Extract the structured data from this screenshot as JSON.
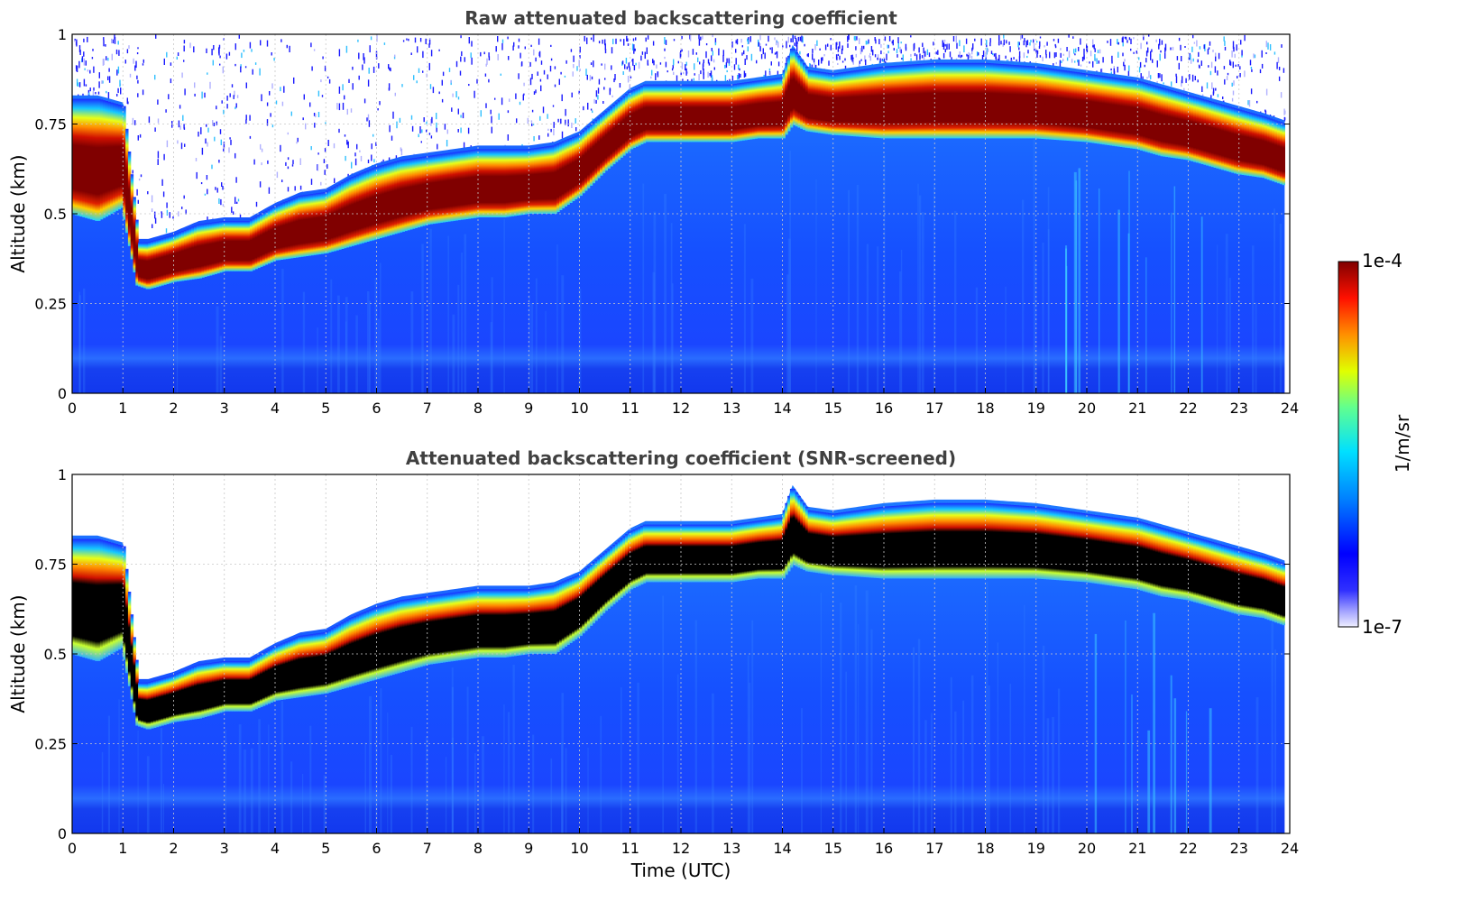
{
  "chart_data": [
    {
      "type": "heatmap",
      "title": "Raw attenuated backscattering coefficient",
      "xlabel": "",
      "ylabel": "Altitude (km)",
      "xlim": [
        0,
        24
      ],
      "ylim": [
        0,
        1
      ],
      "xticks": [
        0,
        1,
        2,
        3,
        4,
        5,
        6,
        7,
        8,
        9,
        10,
        11,
        12,
        13,
        14,
        15,
        16,
        17,
        18,
        19,
        20,
        21,
        22,
        23,
        24
      ],
      "yticks": [
        0,
        0.25,
        0.5,
        0.75,
        1
      ],
      "ytick_labels": [
        "0",
        "0.25",
        "0.5",
        "0.75",
        "1"
      ],
      "grid": true,
      "screened": false,
      "layer_top_km": {
        "time_utc": [
          0,
          0.5,
          1,
          1.3,
          1.5,
          2,
          2.5,
          3,
          3.5,
          4,
          4.5,
          5,
          5.5,
          6,
          6.5,
          7,
          7.5,
          8,
          8.5,
          9,
          9.5,
          10,
          10.5,
          11,
          11.3,
          12,
          12.5,
          13,
          13.5,
          14,
          14.2,
          14.5,
          15,
          16,
          17,
          18,
          19,
          20,
          20.5,
          21,
          21.5,
          22,
          22.5,
          23,
          23.5,
          23.9
        ],
        "altitude_km": [
          0.82,
          0.82,
          0.8,
          0.42,
          0.42,
          0.44,
          0.47,
          0.48,
          0.48,
          0.52,
          0.55,
          0.56,
          0.6,
          0.63,
          0.65,
          0.66,
          0.67,
          0.68,
          0.68,
          0.68,
          0.69,
          0.72,
          0.78,
          0.84,
          0.86,
          0.86,
          0.86,
          0.86,
          0.87,
          0.88,
          0.96,
          0.9,
          0.89,
          0.91,
          0.92,
          0.92,
          0.91,
          0.89,
          0.88,
          0.87,
          0.85,
          0.83,
          0.81,
          0.79,
          0.77,
          0.75
        ]
      },
      "layer_base_km": {
        "time_utc": [
          0,
          0.5,
          1,
          1.3,
          1.5,
          2,
          2.5,
          3,
          3.5,
          4,
          4.5,
          5,
          5.5,
          6,
          6.5,
          7,
          7.5,
          8,
          8.5,
          9,
          9.5,
          10,
          10.5,
          11,
          11.3,
          12,
          12.5,
          13,
          13.5,
          14,
          14.2,
          14.5,
          15,
          16,
          17,
          18,
          19,
          20,
          20.5,
          21,
          21.5,
          22,
          22.5,
          23,
          23.5,
          23.9
        ],
        "altitude_km": [
          0.5,
          0.48,
          0.52,
          0.3,
          0.29,
          0.31,
          0.32,
          0.34,
          0.34,
          0.37,
          0.38,
          0.39,
          0.41,
          0.43,
          0.45,
          0.47,
          0.48,
          0.49,
          0.49,
          0.5,
          0.5,
          0.55,
          0.62,
          0.68,
          0.7,
          0.7,
          0.7,
          0.7,
          0.71,
          0.71,
          0.75,
          0.73,
          0.72,
          0.71,
          0.71,
          0.71,
          0.71,
          0.7,
          0.69,
          0.68,
          0.66,
          0.65,
          0.63,
          0.61,
          0.6,
          0.58
        ]
      }
    },
    {
      "type": "heatmap",
      "title": "Attenuated backscattering coefficient (SNR-screened)",
      "xlabel": "Time (UTC)",
      "ylabel": "Altitude (km)",
      "xlim": [
        0,
        24
      ],
      "ylim": [
        0,
        1
      ],
      "xticks": [
        0,
        1,
        2,
        3,
        4,
        5,
        6,
        7,
        8,
        9,
        10,
        11,
        12,
        13,
        14,
        15,
        16,
        17,
        18,
        19,
        20,
        21,
        22,
        23,
        24
      ],
      "yticks": [
        0,
        0.25,
        0.5,
        0.75,
        1
      ],
      "ytick_labels": [
        "0",
        "0.25",
        "0.5",
        "0.75",
        "1"
      ],
      "grid": true,
      "screened": true,
      "saturated_color": "#000000"
    }
  ],
  "colorbar": {
    "label": "1/m/sr",
    "max_label": "1e-4",
    "min_label": "1e-7",
    "scale": "log",
    "colormap": "jet"
  },
  "colors": {
    "background_clear": "#ffffff",
    "low_signal": "#1a3cff",
    "layer_core": "#800000",
    "title_text": "#404040"
  }
}
